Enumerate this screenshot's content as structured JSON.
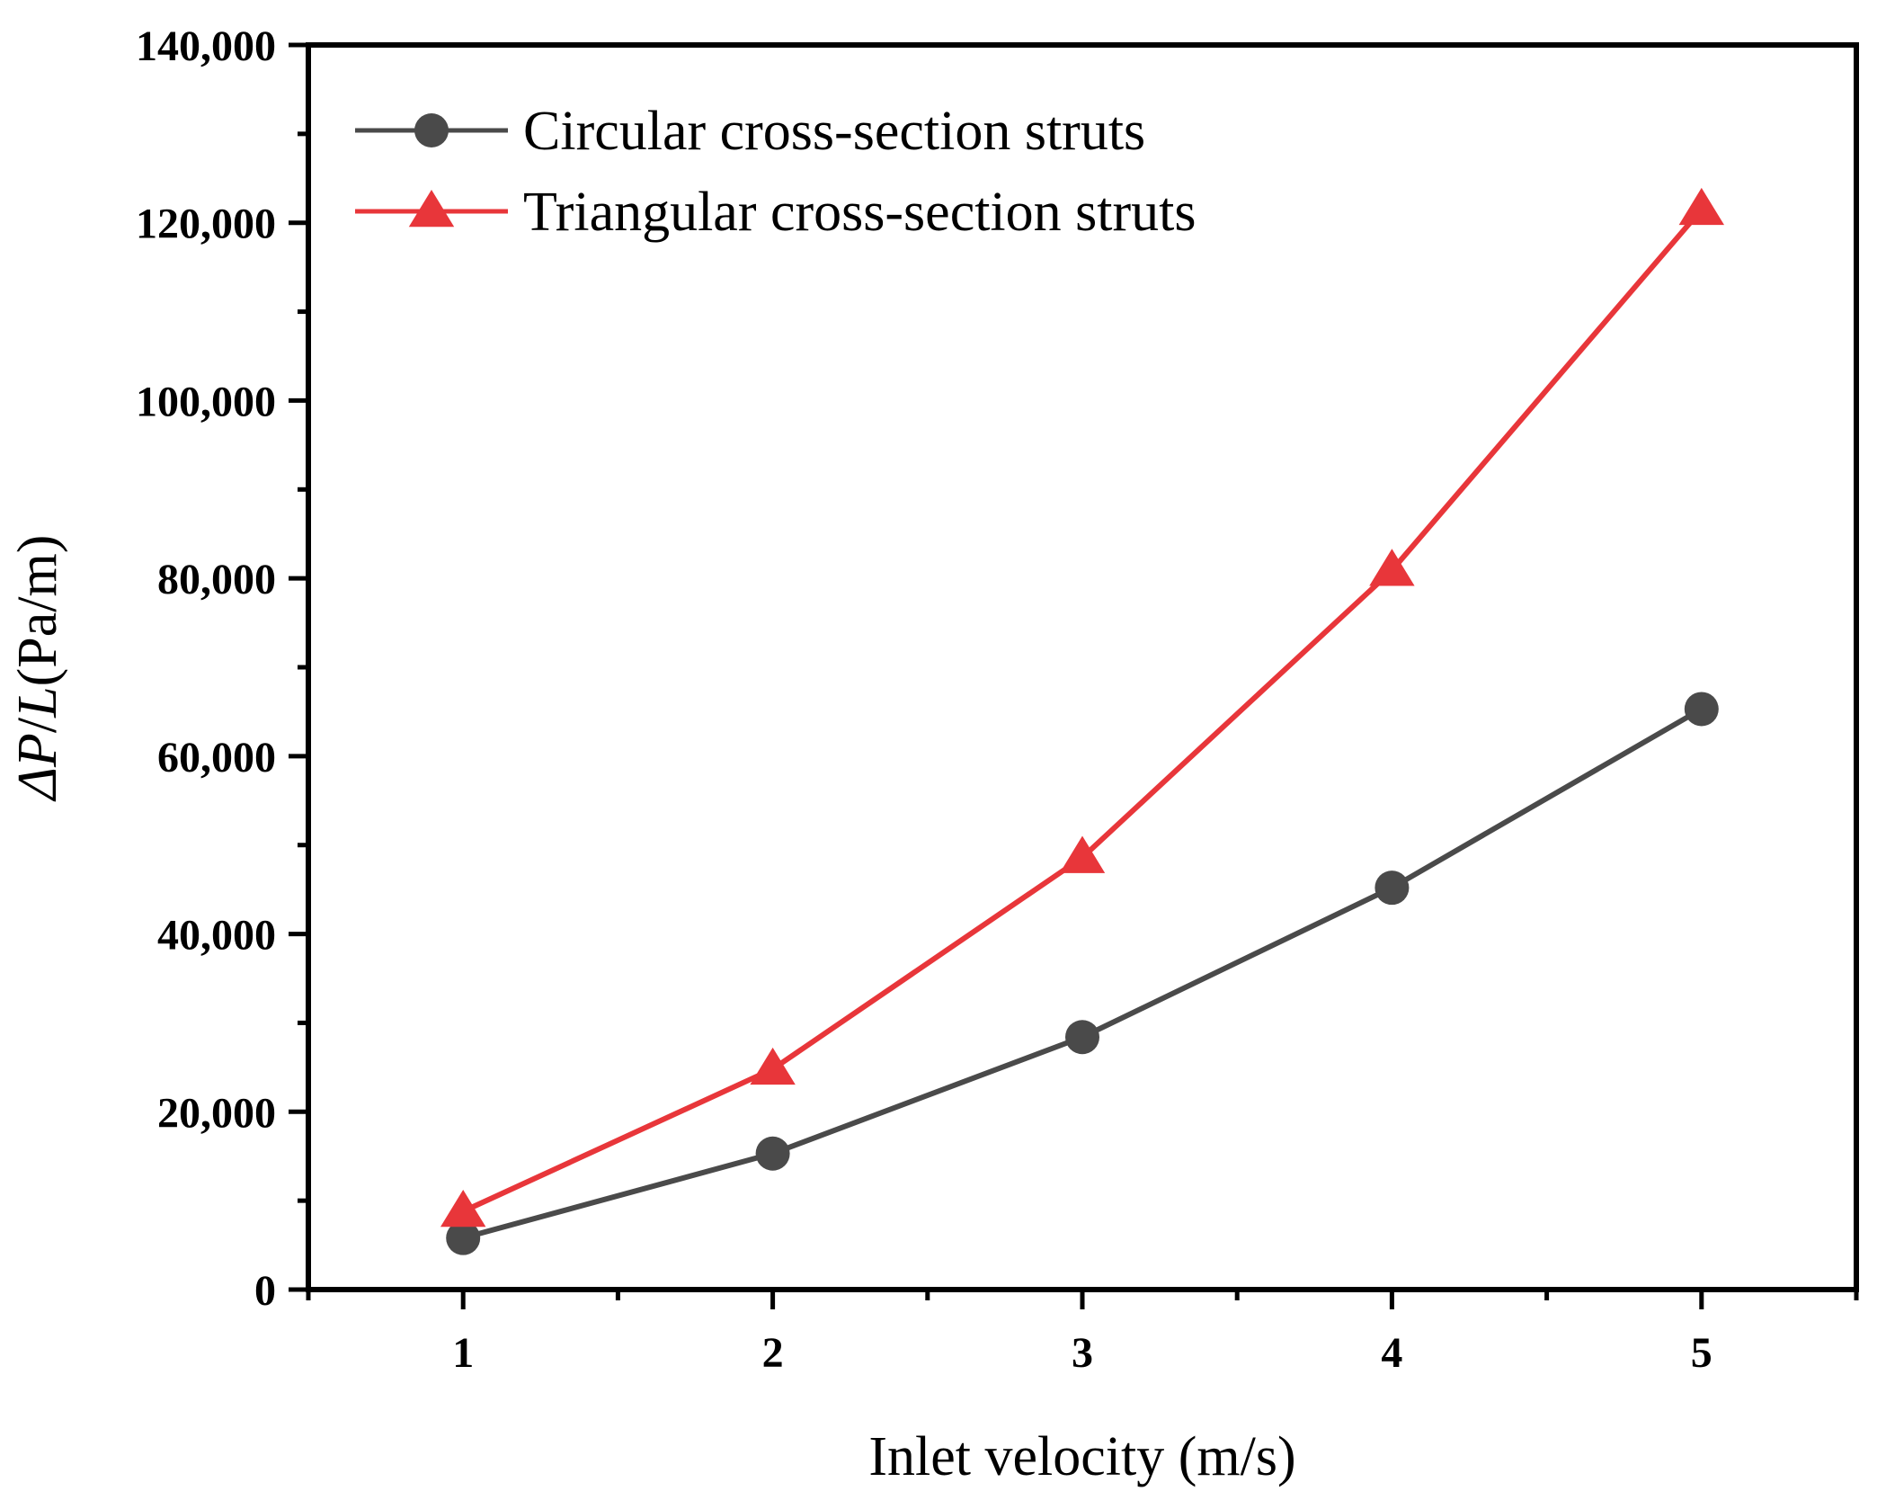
{
  "chart_data": {
    "type": "line",
    "title": "",
    "xlabel": "Inlet velocity (m/s)",
    "ylabel": {
      "delta_p": "ΔP",
      "slash": "/",
      "l": "L",
      "unit": "(Pa/m)"
    },
    "x": [
      1,
      2,
      3,
      4,
      5
    ],
    "xlim": [
      0.5,
      5.5
    ],
    "ylim": [
      0,
      140000
    ],
    "x_ticks": [
      {
        "value": 1,
        "label": "1"
      },
      {
        "value": 2,
        "label": "2"
      },
      {
        "value": 3,
        "label": "3"
      },
      {
        "value": 4,
        "label": "4"
      },
      {
        "value": 5,
        "label": "5"
      }
    ],
    "y_ticks": [
      {
        "value": 0,
        "label": "0"
      },
      {
        "value": 20000,
        "label": "20,000"
      },
      {
        "value": 40000,
        "label": "40,000"
      },
      {
        "value": 60000,
        "label": "60,000"
      },
      {
        "value": 80000,
        "label": "80,000"
      },
      {
        "value": 100000,
        "label": "100,000"
      },
      {
        "value": 120000,
        "label": "120,000"
      },
      {
        "value": 140000,
        "label": "140,000"
      }
    ],
    "grid": false,
    "legend_position": "top-left",
    "series": [
      {
        "name": "Circular cross-section struts",
        "marker": "circle",
        "color": "#4a4a4a",
        "values": [
          5800,
          15300,
          28400,
          45200,
          65300
        ]
      },
      {
        "name": "Triangular cross-section struts",
        "marker": "triangle",
        "color": "#e8363a",
        "values": [
          8800,
          24800,
          48600,
          80900,
          121500
        ]
      }
    ]
  }
}
